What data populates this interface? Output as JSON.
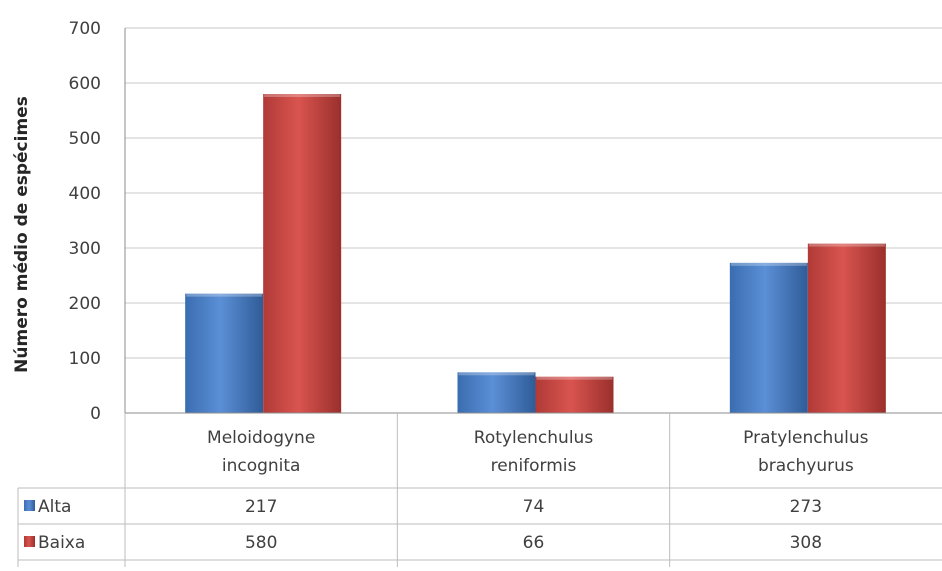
{
  "chart_data": {
    "type": "bar",
    "title": "",
    "xlabel": "",
    "ylabel": "Número médio de espécimes",
    "ylim": [
      0,
      700
    ],
    "yticks": [
      0,
      100,
      200,
      300,
      400,
      500,
      600,
      700
    ],
    "grid": true,
    "legend_placement": "data-table-left",
    "categories": [
      [
        "Meloidogyne",
        "incognita"
      ],
      [
        "Rotylenchulus",
        "reniformis"
      ],
      [
        "Pratylenchulus",
        "brachyurus"
      ]
    ],
    "series": [
      {
        "name": "Alta",
        "color": "#4a7ebb",
        "values": [
          217,
          74,
          273
        ],
        "labels": [
          "217",
          "74",
          "273"
        ]
      },
      {
        "name": "Baixa",
        "color": "#be4b48",
        "values": [
          580,
          66,
          308
        ],
        "labels": [
          "580",
          "66",
          "308"
        ]
      }
    ]
  }
}
